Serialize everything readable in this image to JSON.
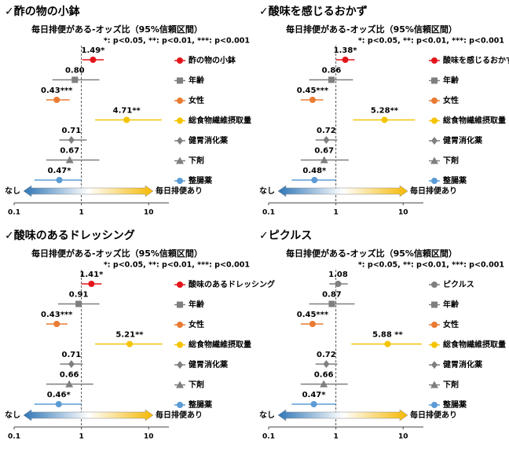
{
  "chart_data": [
    {
      "type": "forest",
      "title": "✓酢の物の小鉢",
      "subtitle": "毎日排便がある-オッズ比（95%信頼区間）",
      "note": "*: p<0.05, **: p<0.01, ***: p<0.001",
      "categories": [
        "酢の物の小鉢",
        "年齢",
        "女性",
        "総食物繊維摂取量",
        "健胃消化薬",
        "下剤",
        "整腸薬"
      ],
      "values": [
        1.49,
        0.8,
        0.43,
        4.71,
        0.71,
        0.67,
        0.47
      ],
      "value_labels": [
        "1.49*",
        "0.80",
        "0.43***",
        "4.71**",
        "0.71",
        "0.67",
        "0.47*"
      ],
      "ci_low": [
        1.03,
        0.37,
        0.3,
        1.6,
        0.47,
        0.3,
        0.2
      ],
      "ci_high": [
        2.15,
        1.85,
        0.67,
        15.6,
        1.2,
        1.85,
        1.0
      ],
      "colors": [
        "#e3151b",
        "#7f7f7f",
        "#e97b32",
        "#f5c400",
        "#7f7f7f",
        "#7f7f7f",
        "#5b9bd5"
      ],
      "markers": [
        "circle",
        "square",
        "circle",
        "circle",
        "diamond",
        "triangle",
        "circle"
      ],
      "xlim": [
        0.1,
        20
      ],
      "xticks": [
        0.1,
        1,
        10
      ],
      "log_x": true,
      "reference_line": 1,
      "arrow_left": "なし",
      "arrow_right": "毎日排便あり"
    },
    {
      "type": "forest",
      "title": "✓酸味を感じるおかず",
      "subtitle": "毎日排便がある-オッズ比（95%信頼区間）",
      "note": "*: p<0.05, **: p<0.01, ***: p<0.001",
      "categories": [
        "酸味を感じるおかず",
        "年齢",
        "女性",
        "総食物繊維摂取量",
        "健胃消化薬",
        "下剤",
        "整腸薬"
      ],
      "values": [
        1.38,
        0.86,
        0.45,
        5.28,
        0.72,
        0.67,
        0.48
      ],
      "value_labels": [
        "1.38*",
        "0.86",
        "0.45***",
        "5.28**",
        "0.72",
        "0.67",
        "0.48*"
      ],
      "ci_low": [
        1.0,
        0.4,
        0.3,
        1.8,
        0.5,
        0.3,
        0.22
      ],
      "ci_high": [
        1.9,
        1.8,
        0.65,
        15,
        1.05,
        1.55,
        1.0
      ],
      "colors": [
        "#e3151b",
        "#7f7f7f",
        "#e97b32",
        "#f5c400",
        "#7f7f7f",
        "#7f7f7f",
        "#5b9bd5"
      ],
      "markers": [
        "circle",
        "square",
        "circle",
        "circle",
        "diamond",
        "triangle",
        "circle"
      ],
      "xlim": [
        0.1,
        20
      ],
      "xticks": [
        0.1,
        1,
        10
      ],
      "log_x": true,
      "reference_line": 1,
      "arrow_left": "なし",
      "arrow_right": "毎日排便あり"
    },
    {
      "type": "forest",
      "title": "✓酸味のあるドレッシング",
      "subtitle": "毎日排便がある-オッズ比（95%信頼区間）",
      "note": "*: p<0.05, **: p<0.01, ***: p<0.001",
      "categories": [
        "酸味のあるドレッシング",
        "年齢",
        "女性",
        "総食物繊維摂取量",
        "健胃消化薬",
        "下剤",
        "整腸薬"
      ],
      "values": [
        1.41,
        0.91,
        0.43,
        5.21,
        0.71,
        0.66,
        0.46
      ],
      "value_labels": [
        "1.41*",
        "0.91",
        "0.43***",
        "5.21**",
        "0.71",
        "0.66",
        "0.46*"
      ],
      "ci_low": [
        1.0,
        0.45,
        0.3,
        1.6,
        0.48,
        0.3,
        0.2
      ],
      "ci_high": [
        2.0,
        1.85,
        0.62,
        16,
        1.05,
        1.5,
        1.0
      ],
      "colors": [
        "#e3151b",
        "#7f7f7f",
        "#e97b32",
        "#f5c400",
        "#7f7f7f",
        "#7f7f7f",
        "#5b9bd5"
      ],
      "markers": [
        "circle",
        "square",
        "circle",
        "circle",
        "diamond",
        "triangle",
        "circle"
      ],
      "xlim": [
        0.1,
        20
      ],
      "xticks": [
        0.1,
        1,
        10
      ],
      "log_x": true,
      "reference_line": 1,
      "arrow_left": "なし",
      "arrow_right": "毎日排便あり"
    },
    {
      "type": "forest",
      "title": "✓ピクルス",
      "subtitle": "毎日排便がある-オッズ比（95%信頼区間）",
      "note": "*: p<0.05, **: p<0.01, ***: p<0.001",
      "categories": [
        "ピクルス",
        "年齢",
        "女性",
        "総食物繊維摂取量",
        "健胃消化薬",
        "下剤",
        "整腸薬"
      ],
      "values": [
        1.08,
        0.87,
        0.45,
        5.88,
        0.72,
        0.66,
        0.47
      ],
      "value_labels": [
        "1.08",
        "0.87",
        "0.45***",
        "5.88 **",
        "0.72",
        "0.66",
        "0.47*"
      ],
      "ci_low": [
        0.8,
        0.4,
        0.3,
        1.7,
        0.5,
        0.3,
        0.22
      ],
      "ci_high": [
        1.5,
        1.9,
        0.65,
        19,
        1.05,
        1.5,
        1.0
      ],
      "colors": [
        "#7f7f7f",
        "#7f7f7f",
        "#e97b32",
        "#f5c400",
        "#7f7f7f",
        "#7f7f7f",
        "#5b9bd5"
      ],
      "markers": [
        "circle",
        "square",
        "circle",
        "circle",
        "diamond",
        "triangle",
        "circle"
      ],
      "xlim": [
        0.1,
        20
      ],
      "xticks": [
        0.1,
        1,
        10
      ],
      "log_x": true,
      "reference_line": 1,
      "arrow_left": "なし",
      "arrow_right": "毎日排便あり"
    }
  ]
}
